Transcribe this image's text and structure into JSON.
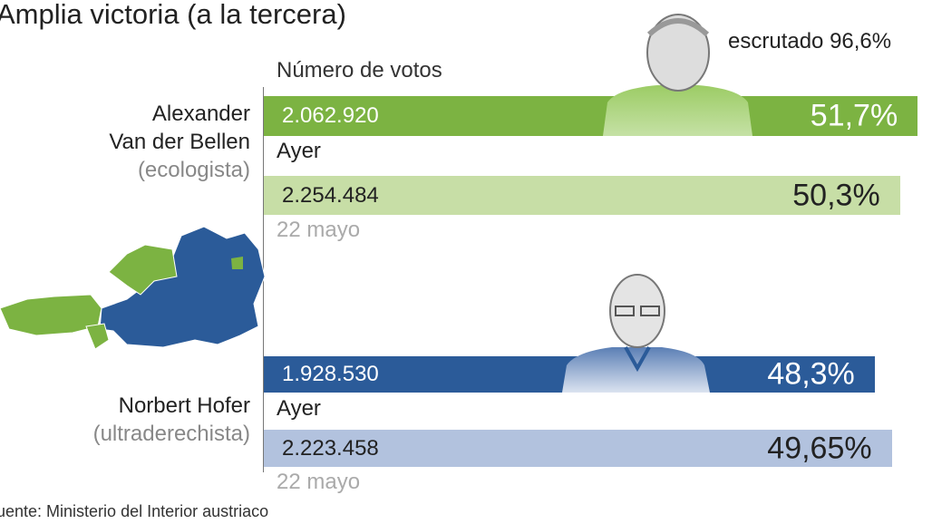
{
  "title": "Amplia victoria (a la tercera)",
  "escrutado": "escrutado 96,6%",
  "source": "uente: Ministerio del Interior austriaco",
  "chart_data": {
    "type": "bar",
    "title": "Amplia victoria (a la tercera)",
    "xlabel": "Número de votos",
    "candidates": [
      {
        "name_line1": "Alexander",
        "name_line2": "Van der Bellen",
        "party": "(ecologista)",
        "current": {
          "votes": "2.062.920",
          "pct_label": "51,7%",
          "pct": 51.7,
          "color": "#7cb342",
          "text_color": "#ffffff"
        },
        "previous": {
          "label": "Ayer",
          "votes": "2.254.484",
          "pct_label": "50,3%",
          "pct": 50.3,
          "color": "#c7deA6",
          "text_color": "#222222",
          "date": "22 mayo"
        }
      },
      {
        "name_line1": "Norbert Hofer",
        "name_line2": "",
        "party": "(ultraderechista)",
        "current": {
          "votes": "1.928.530",
          "pct_label": "48,3%",
          "pct": 48.3,
          "color": "#2b5b99",
          "text_color": "#ffffff"
        },
        "previous": {
          "label": "Ayer",
          "votes": "2.223.458",
          "pct_label": "49,65%",
          "pct": 49.65,
          "color": "#b2c2de",
          "text_color": "#222222",
          "date": "22 mayo"
        }
      }
    ]
  }
}
